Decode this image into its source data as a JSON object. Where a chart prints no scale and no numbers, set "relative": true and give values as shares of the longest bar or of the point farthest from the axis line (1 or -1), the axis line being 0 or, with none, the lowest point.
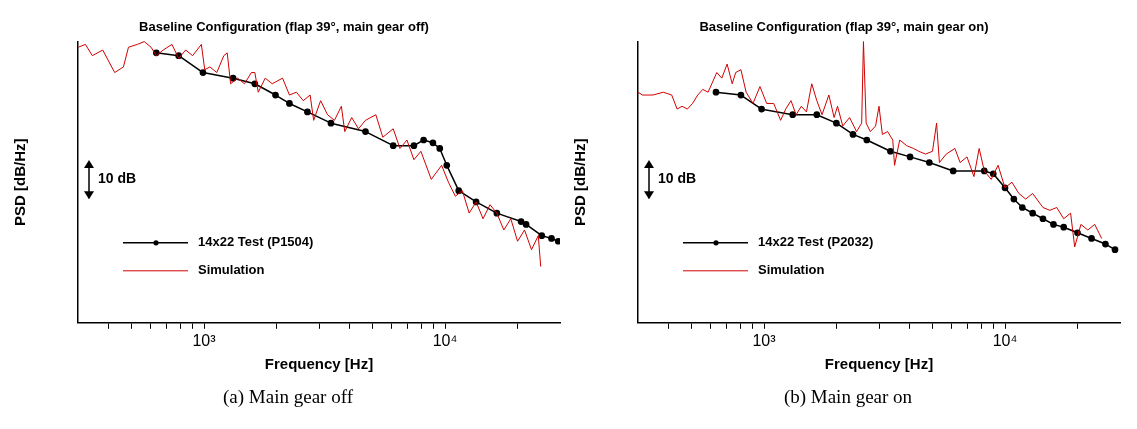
{
  "chart_data": [
    {
      "type": "line",
      "title": "Baseline Configuration (flap 39°, main gear off)",
      "xlabel": "Frequency [Hz]",
      "ylabel": "PSD [dB/Hz]",
      "log": "x",
      "relative": true,
      "legend": "bottom left",
      "grid": false,
      "xlim": [
        300,
        30000
      ],
      "xticks": [
        {
          "value": 400,
          "label": null
        },
        {
          "value": 500,
          "label": null
        },
        {
          "value": 600,
          "label": null
        },
        {
          "value": 700,
          "label": null
        },
        {
          "value": 800,
          "label": null
        },
        {
          "value": 900,
          "label": null
        },
        {
          "value": 1000,
          "label": "10³"
        },
        {
          "value": 2000,
          "label": null
        },
        {
          "value": 3000,
          "label": null
        },
        {
          "value": 4000,
          "label": null
        },
        {
          "value": 5000,
          "label": null
        },
        {
          "value": 6000,
          "label": null
        },
        {
          "value": 7000,
          "label": null
        },
        {
          "value": 8000,
          "label": null
        },
        {
          "value": 9000,
          "label": null
        },
        {
          "value": 10000,
          "label": "10⁴"
        },
        {
          "value": 20000,
          "label": null
        }
      ],
      "annotations": [
        "10 dB",
        "(a) Main gear off"
      ],
      "series": [
        {
          "name": "14x22 Test (P1504)",
          "color": "#000000",
          "marker": "circle",
          "x": [
            634,
            785,
            990,
            1320,
            1625,
            1980,
            2262,
            2686,
            3363,
            4677,
            6095,
            7430,
            8150,
            8910,
            9510,
            10170,
            11400,
            13460,
            16410,
            20680,
            21700,
            25200,
            27660,
            29500
          ],
          "values": [
            0.96,
            0.95,
            0.89,
            0.87,
            0.85,
            0.81,
            0.78,
            0.75,
            0.71,
            0.68,
            0.63,
            0.63,
            0.65,
            0.64,
            0.62,
            0.56,
            0.47,
            0.43,
            0.39,
            0.36,
            0.35,
            0.31,
            0.3,
            0.29
          ]
        },
        {
          "name": "Simulation",
          "color": "#d00000",
          "marker": "none",
          "x": [
            301,
            322,
            344,
            380,
            426,
            463,
            486,
            529,
            565,
            603,
            634,
            677,
            736,
            785,
            839,
            897,
            975,
            1007,
            1058,
            1130,
            1208,
            1248,
            1290,
            1378,
            1472,
            1573,
            1625,
            1679,
            1795,
            1918,
            2118,
            2262,
            2417,
            2582,
            2756,
            2851,
            3047,
            3254,
            3477,
            3715,
            3837,
            4100,
            4377,
            4677,
            5164,
            5519,
            6095,
            6503,
            6950,
            7430,
            7940,
            8770,
            9680,
            10330,
            11040,
            11800,
            12600,
            13460,
            14380,
            15370,
            16410,
            17540,
            18750,
            20000,
            21380,
            22850,
            24380,
            24950
          ],
          "values": [
            0.98,
            0.99,
            0.95,
            0.97,
            0.89,
            0.91,
            0.98,
            0.99,
            1,
            0.98,
            0.95,
            0.97,
            0.99,
            0.94,
            0.97,
            0.95,
            0.99,
            0.9,
            0.91,
            0.89,
            0.95,
            0.96,
            0.85,
            0.87,
            0.85,
            0.89,
            0.89,
            0.82,
            0.87,
            0.85,
            0.87,
            0.81,
            0.82,
            0.79,
            0.81,
            0.72,
            0.79,
            0.74,
            0.72,
            0.77,
            0.68,
            0.73,
            0.69,
            0.72,
            0.74,
            0.66,
            0.69,
            0.62,
            0.65,
            0.58,
            0.61,
            0.51,
            0.56,
            0.5,
            0.45,
            0.47,
            0.39,
            0.43,
            0.37,
            0.42,
            0.39,
            0.33,
            0.37,
            0.29,
            0.33,
            0.26,
            0.31,
            0.2
          ]
        }
      ]
    },
    {
      "type": "line",
      "title": "Baseline Configuration (flap 39°, main gear on)",
      "xlabel": "Frequency [Hz]",
      "ylabel": "PSD [dB/Hz]",
      "log": "x",
      "relative": true,
      "legend": "bottom left",
      "grid": false,
      "xlim": [
        300,
        30000
      ],
      "xticks": [
        {
          "value": 400,
          "label": null
        },
        {
          "value": 500,
          "label": null
        },
        {
          "value": 600,
          "label": null
        },
        {
          "value": 700,
          "label": null
        },
        {
          "value": 800,
          "label": null
        },
        {
          "value": 900,
          "label": null
        },
        {
          "value": 1000,
          "label": "10³"
        },
        {
          "value": 2000,
          "label": null
        },
        {
          "value": 3000,
          "label": null
        },
        {
          "value": 4000,
          "label": null
        },
        {
          "value": 5000,
          "label": null
        },
        {
          "value": 6000,
          "label": null
        },
        {
          "value": 7000,
          "label": null
        },
        {
          "value": 8000,
          "label": null
        },
        {
          "value": 9000,
          "label": null
        },
        {
          "value": 10000,
          "label": "10⁴"
        },
        {
          "value": 20000,
          "label": null
        }
      ],
      "annotations": [
        "10 dB",
        "(b) Main gear on"
      ],
      "series": [
        {
          "name": "14x22 Test (P2032)",
          "color": "#000000",
          "marker": "circle",
          "x": [
            632,
            802,
            977,
            1315,
            1656,
            1997,
            2340,
            2670,
            3346,
            4037,
            4853,
            6095,
            8204,
            8940,
            10000,
            10880,
            11800,
            13020,
            14370,
            15890,
            17520,
            19990,
            22860,
            26100,
            28600
          ],
          "values": [
            0.82,
            0.81,
            0.76,
            0.74,
            0.74,
            0.71,
            0.67,
            0.65,
            0.61,
            0.59,
            0.57,
            0.54,
            0.54,
            0.53,
            0.48,
            0.44,
            0.41,
            0.39,
            0.37,
            0.35,
            0.34,
            0.32,
            0.3,
            0.28,
            0.26
          ]
        },
        {
          "name": "Simulation",
          "color": "#d00000",
          "marker": "none",
          "x": [
            300,
            313,
            346,
            382,
            414,
            436,
            457,
            481,
            505,
            531,
            557,
            586,
            637,
            668,
            703,
            738,
            763,
            802,
            843,
            900,
            962,
            1026,
            1097,
            1172,
            1230,
            1294,
            1359,
            1428,
            1500,
            1578,
            1656,
            1741,
            1858,
            1954,
            2018,
            2122,
            2265,
            2421,
            2542,
            2586,
            2654,
            2761,
            2904,
            3000,
            3098,
            3258,
            3422,
            3480,
            3656,
            3908,
            4171,
            4385,
            4680,
            5002,
            5200,
            5344,
            5703,
            6195,
            6511,
            6954,
            7432,
            7812,
            8204,
            8763,
            9356,
            10000,
            10680,
            11410,
            12190,
            13020,
            14370,
            15350,
            16390,
            17520,
            18710,
            19460,
            20650,
            22060,
            23560,
            25180
          ],
          "values": [
            0.82,
            0.81,
            0.81,
            0.82,
            0.81,
            0.76,
            0.77,
            0.76,
            0.78,
            0.81,
            0.83,
            0.82,
            0.89,
            0.87,
            0.92,
            0.85,
            0.89,
            0.9,
            0.82,
            0.78,
            0.84,
            0.78,
            0.78,
            0.72,
            0.76,
            0.79,
            0.74,
            0.77,
            0.75,
            0.85,
            0.79,
            0.74,
            0.81,
            0.73,
            0.77,
            0.7,
            0.73,
            0.68,
            0.71,
            1,
            0.71,
            0.68,
            0.7,
            0.77,
            0.67,
            0.68,
            0.65,
            0.56,
            0.65,
            0.63,
            0.62,
            0.61,
            0.6,
            0.61,
            0.71,
            0.57,
            0.6,
            0.62,
            0.57,
            0.59,
            0.52,
            0.62,
            0.54,
            0.51,
            0.56,
            0.48,
            0.5,
            0.46,
            0.44,
            0.46,
            0.41,
            0.4,
            0.41,
            0.37,
            0.39,
            0.27,
            0.35,
            0.33,
            0.35,
            0.3
          ]
        }
      ]
    }
  ]
}
